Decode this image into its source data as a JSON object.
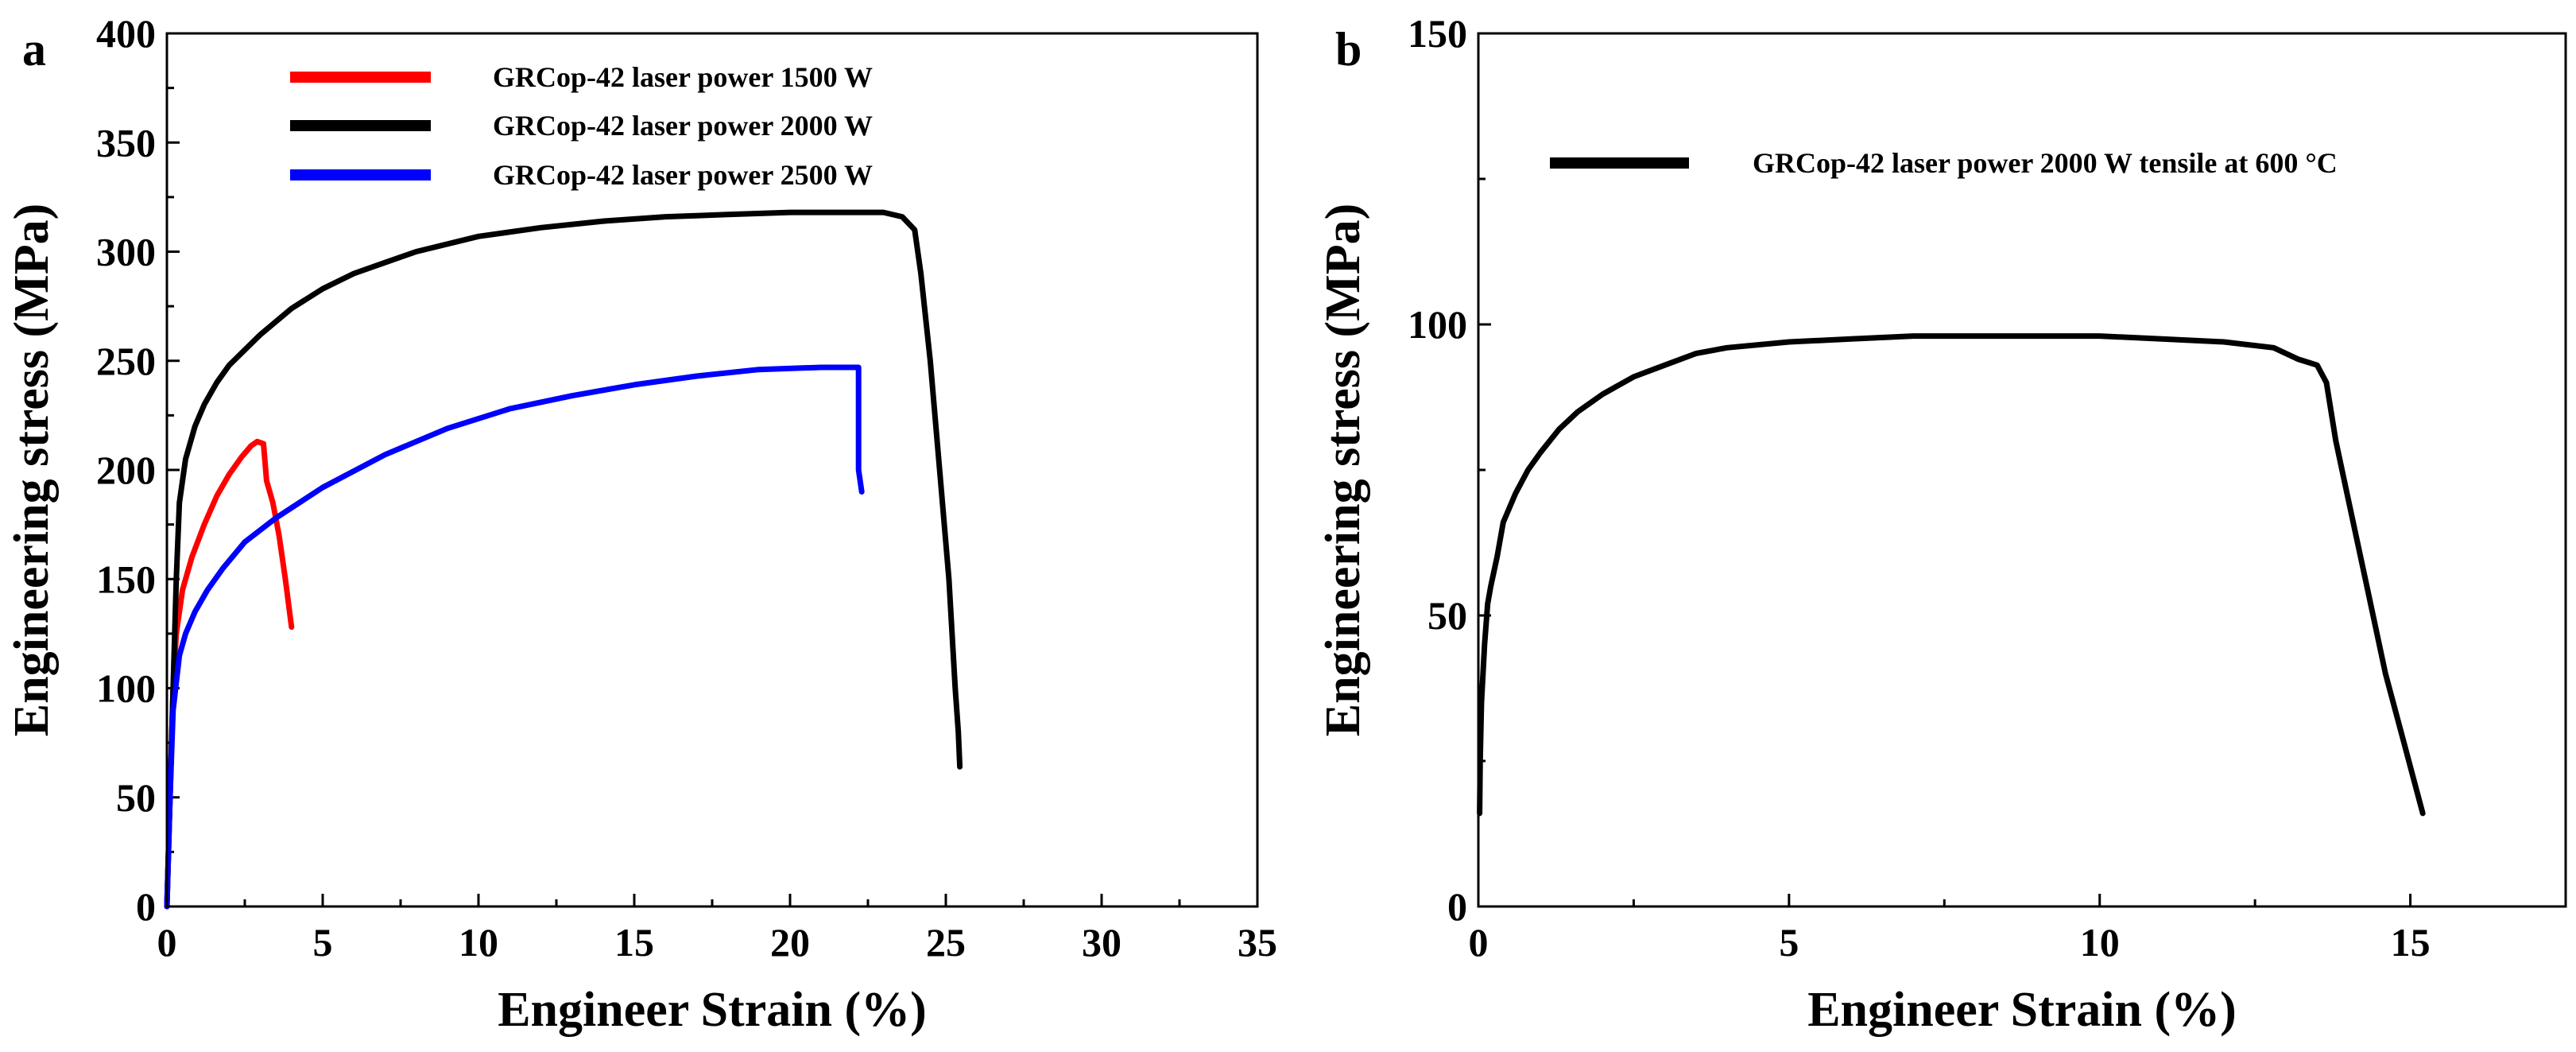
{
  "chart_data": [
    {
      "type": "line",
      "panel_label": "a",
      "xlabel": "Engineer Strain (%)",
      "ylabel": "Engineering stress (MPa)",
      "xlim": [
        0,
        35
      ],
      "ylim": [
        0,
        400
      ],
      "xticks": [
        0,
        5,
        10,
        15,
        20,
        25,
        30,
        35
      ],
      "yticks": [
        0,
        50,
        100,
        150,
        200,
        250,
        300,
        350,
        400
      ],
      "legend_position": "top-left",
      "series": [
        {
          "name": "GRCop-42 laser power 1500 W",
          "color": "#ff0000",
          "x": [
            0,
            0.1,
            0.2,
            0.3,
            0.5,
            0.8,
            1.2,
            1.6,
            2.0,
            2.4,
            2.7,
            2.9,
            3.1,
            3.2,
            3.4,
            3.6,
            3.8,
            4.0
          ],
          "y": [
            0,
            50,
            100,
            125,
            145,
            160,
            175,
            188,
            198,
            206,
            211,
            213,
            212,
            195,
            185,
            170,
            150,
            128
          ]
        },
        {
          "name": "GRCop-42 laser power 2000 W",
          "color": "#000000",
          "x": [
            0,
            0.1,
            0.2,
            0.3,
            0.4,
            0.6,
            0.9,
            1.2,
            1.6,
            2,
            3,
            4,
            5,
            6,
            7,
            8,
            10,
            12,
            14,
            16,
            18,
            20,
            21,
            22,
            23,
            23.6,
            24.0,
            24.2,
            24.5,
            24.8,
            25.1,
            25.3,
            25.4,
            25.45
          ],
          "y": [
            0,
            50,
            100,
            150,
            185,
            205,
            220,
            230,
            240,
            248,
            262,
            274,
            283,
            290,
            295,
            300,
            307,
            311,
            314,
            316,
            317,
            318,
            318,
            318,
            318,
            316,
            310,
            290,
            250,
            200,
            150,
            100,
            80,
            64
          ]
        },
        {
          "name": "GRCop-42 laser power 2500 W",
          "color": "#0000ff",
          "x": [
            0,
            0.1,
            0.2,
            0.4,
            0.6,
            0.9,
            1.3,
            1.8,
            2.5,
            3.5,
            5,
            7,
            9,
            11,
            13,
            15,
            17,
            19,
            21,
            22,
            22.2,
            22.2,
            22.3
          ],
          "y": [
            0,
            50,
            90,
            115,
            125,
            135,
            145,
            155,
            167,
            178,
            192,
            207,
            219,
            228,
            234,
            239,
            243,
            246,
            247,
            247,
            247,
            200,
            190
          ]
        }
      ]
    },
    {
      "type": "line",
      "panel_label": "b",
      "xlabel": "Engineer Strain (%)",
      "ylabel": "Engineering stress (MPa)",
      "xlim": [
        0,
        17.5
      ],
      "ylim": [
        0,
        150
      ],
      "xticks": [
        0,
        5,
        10,
        15
      ],
      "yticks": [
        0,
        50,
        100,
        150
      ],
      "legend_position": "top",
      "series": [
        {
          "name": "GRCop-42 laser power 2000 W tensile at 600 °C",
          "color": "#000000",
          "x": [
            0.02,
            0.03,
            0.05,
            0.1,
            0.15,
            0.2,
            0.3,
            0.4,
            0.6,
            0.8,
            1.0,
            1.3,
            1.6,
            2.0,
            2.5,
            3.0,
            3.5,
            4.0,
            5,
            6,
            7,
            8,
            9,
            10,
            11,
            12,
            12.8,
            13.2,
            13.5,
            13.65,
            13.8,
            14.0,
            14.3,
            14.6,
            14.9,
            15.1,
            15.2
          ],
          "y": [
            16,
            25,
            35,
            45,
            52,
            55,
            60,
            66,
            71,
            75,
            78,
            82,
            85,
            88,
            91,
            93,
            95,
            96,
            97,
            97.5,
            98,
            98,
            98,
            98,
            97.5,
            97,
            96,
            94,
            93,
            90,
            80,
            70,
            55,
            40,
            28,
            20,
            16
          ]
        }
      ]
    }
  ]
}
